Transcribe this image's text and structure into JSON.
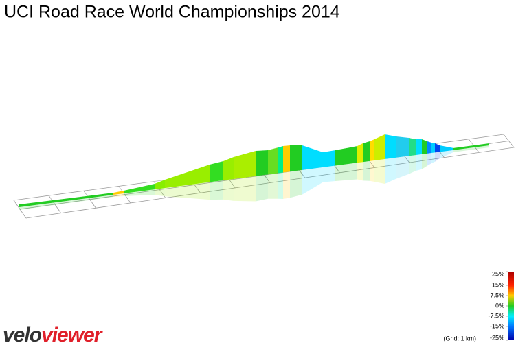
{
  "header": {
    "title": "UCI Road Race World Championships 2014"
  },
  "colorbar": {
    "lim": [
      -25,
      25
    ],
    "ticks": [
      {
        "value": 25,
        "label": "25%"
      },
      {
        "value": 15,
        "label": "15%"
      },
      {
        "value": 7.5,
        "label": "7.5%"
      },
      {
        "value": 0,
        "label": "0%"
      },
      {
        "value": -7.5,
        "label": "-7.5%"
      },
      {
        "value": -15,
        "label": "-15%"
      },
      {
        "value": -25,
        "label": "-25%"
      }
    ],
    "note": "(Grid: 1 km)"
  },
  "logo": {
    "part1": "velo",
    "part2": "viewer"
  }
}
